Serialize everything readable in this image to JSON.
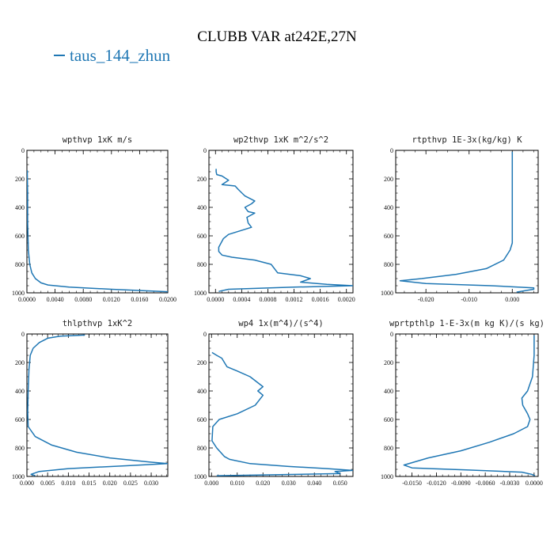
{
  "figure": {
    "title": "CLUBB VAR at242E,27N",
    "legend": [
      {
        "label": "taus_144_zhun",
        "color": "#1f77b4"
      }
    ]
  },
  "chart_data": [
    {
      "type": "line",
      "title": "wpthvp  1xK m/s",
      "xlim": [
        0,
        0.02
      ],
      "ylim": [
        1000,
        0
      ],
      "xticks": [
        0,
        0.004,
        0.008,
        0.012,
        0.016,
        0.02
      ],
      "xtick_labels": [
        "0.0000",
        "0.0040",
        "0.0080",
        "0.0120",
        "0.0160",
        "0.0200"
      ],
      "yticks": [
        0,
        200,
        400,
        600,
        800,
        1000
      ],
      "ytick_labels": [
        "0",
        "200",
        "400",
        "600",
        "800",
        "1000"
      ],
      "series": [
        {
          "color": "#1f77b4",
          "points": [
            [
              5e-05,
              140
            ],
            [
              0.0001,
              300
            ],
            [
              0.0001,
              500
            ],
            [
              0.0002,
              700
            ],
            [
              0.0004,
              800
            ],
            [
              0.0007,
              860
            ],
            [
              0.0012,
              900
            ],
            [
              0.002,
              930
            ],
            [
              0.003,
              945
            ],
            [
              0.006,
              960
            ],
            [
              0.012,
              975
            ],
            [
              0.02,
              992
            ]
          ]
        }
      ]
    },
    {
      "type": "line",
      "title": "wp2thvp  1xK m^2/s^2",
      "xlim": [
        -0.0001,
        0.0021
      ],
      "ylim": [
        1000,
        0
      ],
      "xticks": [
        0,
        0.0004,
        0.0008,
        0.0012,
        0.0016,
        0.002
      ],
      "xtick_labels": [
        "0.0000",
        "0.0004",
        "0.0008",
        "0.0012",
        "0.0016",
        "0.0020"
      ],
      "yticks": [
        0,
        200,
        400,
        600,
        800,
        1000
      ],
      "ytick_labels": [
        "0",
        "200",
        "400",
        "600",
        "800",
        "1000"
      ],
      "series": [
        {
          "color": "#1f77b4",
          "points": [
            [
              1e-05,
              130
            ],
            [
              1e-05,
              150
            ],
            [
              2e-05,
              170
            ],
            [
              0.0001,
              180
            ],
            [
              0.0002,
              210
            ],
            [
              0.0001,
              240
            ],
            [
              0.0003,
              250
            ],
            [
              0.00035,
              275
            ],
            [
              0.00045,
              320
            ],
            [
              0.0006,
              355
            ],
            [
              0.00055,
              375
            ],
            [
              0.00045,
              400
            ],
            [
              0.0005,
              430
            ],
            [
              0.0006,
              440
            ],
            [
              0.00048,
              470
            ],
            [
              0.0005,
              510
            ],
            [
              0.00055,
              540
            ],
            [
              0.0002,
              590
            ],
            [
              0.00012,
              620
            ],
            [
              5e-05,
              680
            ],
            [
              5e-05,
              710
            ],
            [
              0.0001,
              735
            ],
            [
              0.00025,
              750
            ],
            [
              0.0006,
              770
            ],
            [
              0.00085,
              800
            ],
            [
              0.00095,
              860
            ],
            [
              0.0013,
              880
            ],
            [
              0.00145,
              900
            ],
            [
              0.0013,
              925
            ],
            [
              0.0017,
              940
            ],
            [
              0.0021,
              950
            ],
            [
              0.0012,
              960
            ],
            [
              0.0002,
              975
            ],
            [
              5e-05,
              990
            ]
          ]
        }
      ]
    },
    {
      "type": "line",
      "title": "rtpthvp  1E-3x(kg/kg) K",
      "xlim": [
        -0.027,
        0.006
      ],
      "ylim": [
        1000,
        0
      ],
      "xticks": [
        -0.02,
        -0.01,
        0
      ],
      "xtick_labels": [
        "-0.020",
        "-0.010",
        "0.000"
      ],
      "yticks": [
        0,
        200,
        400,
        600,
        800,
        1000
      ],
      "ytick_labels": [
        "0",
        "200",
        "400",
        "600",
        "800",
        "1000"
      ],
      "series": [
        {
          "color": "#1f77b4",
          "points": [
            [
              0,
              10
            ],
            [
              0,
              200
            ],
            [
              0,
              400
            ],
            [
              0,
              560
            ],
            [
              0,
              650
            ],
            [
              -0.0005,
              700
            ],
            [
              -0.002,
              770
            ],
            [
              -0.006,
              830
            ],
            [
              -0.013,
              870
            ],
            [
              -0.021,
              900
            ],
            [
              -0.026,
              915
            ],
            [
              -0.02,
              935
            ],
            [
              -0.005,
              950
            ],
            [
              0.005,
              965
            ],
            [
              0.005,
              975
            ],
            [
              0.003,
              985
            ],
            [
              0.001,
              995
            ]
          ]
        }
      ]
    },
    {
      "type": "line",
      "title": "thlpthvp  1xK^2",
      "xlim": [
        0,
        0.034
      ],
      "ylim": [
        1000,
        0
      ],
      "xticks": [
        0,
        0.005,
        0.01,
        0.015,
        0.02,
        0.025,
        0.03
      ],
      "xtick_labels": [
        "0.000",
        "0.005",
        "0.010",
        "0.015",
        "0.020",
        "0.025",
        "0.030"
      ],
      "yticks": [
        0,
        200,
        400,
        600,
        800,
        1000
      ],
      "ytick_labels": [
        "0",
        "200",
        "400",
        "600",
        "800",
        "1000"
      ],
      "series": [
        {
          "color": "#1f77b4",
          "points": [
            [
              0.014,
              8
            ],
            [
              0.008,
              15
            ],
            [
              0.005,
              30
            ],
            [
              0.003,
              60
            ],
            [
              0.0015,
              100
            ],
            [
              0.0008,
              150
            ],
            [
              0.0005,
              250
            ],
            [
              0.0003,
              400
            ],
            [
              0.0002,
              550
            ],
            [
              0.0003,
              650
            ],
            [
              0.002,
              720
            ],
            [
              0.006,
              780
            ],
            [
              0.012,
              830
            ],
            [
              0.02,
              870
            ],
            [
              0.03,
              900
            ],
            [
              0.034,
              910
            ],
            [
              0.024,
              925
            ],
            [
              0.01,
              945
            ],
            [
              0.003,
              965
            ],
            [
              0.001,
              985
            ],
            [
              0.002,
              995
            ]
          ]
        }
      ]
    },
    {
      "type": "line",
      "title": "wp4  1x(m^4)/(s^4)",
      "xlim": [
        -0.001,
        0.055
      ],
      "ylim": [
        1000,
        0
      ],
      "xticks": [
        0,
        0.01,
        0.02,
        0.03,
        0.04,
        0.05
      ],
      "xtick_labels": [
        "0.000",
        "0.010",
        "0.020",
        "0.030",
        "0.040",
        "0.050"
      ],
      "yticks": [
        0,
        200,
        400,
        600,
        800,
        1000
      ],
      "ytick_labels": [
        "0",
        "200",
        "400",
        "600",
        "800",
        "1000"
      ],
      "series": [
        {
          "color": "#1f77b4",
          "points": [
            [
              0.0002,
              130
            ],
            [
              0.002,
              150
            ],
            [
              0.004,
              170
            ],
            [
              0.005,
              200
            ],
            [
              0.006,
              230
            ],
            [
              0.01,
              260
            ],
            [
              0.015,
              300
            ],
            [
              0.02,
              370
            ],
            [
              0.018,
              400
            ],
            [
              0.02,
              430
            ],
            [
              0.017,
              500
            ],
            [
              0.01,
              560
            ],
            [
              0.003,
              600
            ],
            [
              0.0005,
              650
            ],
            [
              0.0002,
              750
            ],
            [
              0.002,
              800
            ],
            [
              0.005,
              860
            ],
            [
              0.007,
              880
            ],
            [
              0.015,
              910
            ],
            [
              0.03,
              930
            ],
            [
              0.045,
              945
            ],
            [
              0.055,
              958
            ],
            [
              0.048,
              965
            ],
            [
              0.05,
              980
            ],
            [
              0.002,
              995
            ]
          ]
        }
      ]
    },
    {
      "type": "line",
      "title": "wprtpthlp  1-E-3x(m kg K)/(s kg)",
      "xlim": [
        -0.017,
        0.0005
      ],
      "ylim": [
        1000,
        0
      ],
      "xticks": [
        -0.015,
        -0.012,
        -0.009,
        -0.006,
        -0.003,
        0
      ],
      "xtick_labels": [
        "-0.0150",
        "-0.0120",
        "-0.0090",
        "-0.0060",
        "-0.0030",
        "0.0000"
      ],
      "yticks": [
        0,
        200,
        400,
        600,
        800,
        1000
      ],
      "ytick_labels": [
        "0",
        "200",
        "400",
        "600",
        "800",
        "1000"
      ],
      "series": [
        {
          "color": "#1f77b4",
          "points": [
            [
              0,
              10
            ],
            [
              0,
              150
            ],
            [
              -0.0002,
              300
            ],
            [
              -0.0008,
              400
            ],
            [
              -0.0015,
              450
            ],
            [
              -0.0014,
              500
            ],
            [
              -0.0008,
              560
            ],
            [
              -0.0005,
              600
            ],
            [
              -0.0008,
              650
            ],
            [
              -0.0025,
              700
            ],
            [
              -0.0055,
              760
            ],
            [
              -0.009,
              820
            ],
            [
              -0.013,
              870
            ],
            [
              -0.016,
              920
            ],
            [
              -0.015,
              940
            ],
            [
              -0.008,
              955
            ],
            [
              -0.0015,
              970
            ],
            [
              -0.0003,
              985
            ],
            [
              0.0001,
              995
            ]
          ]
        }
      ]
    }
  ]
}
